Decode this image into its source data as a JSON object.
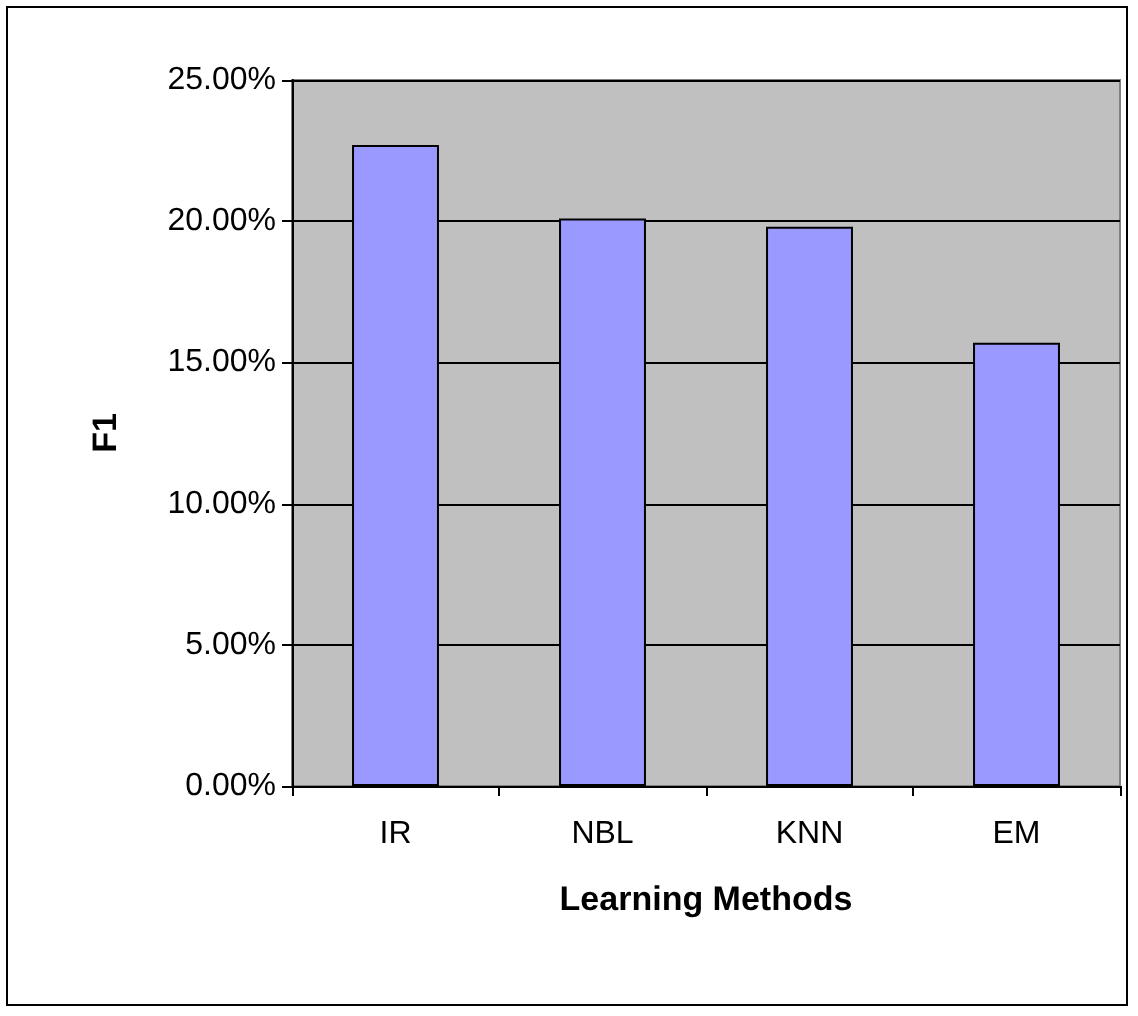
{
  "chart_data": {
    "type": "bar",
    "xlabel": "Learning Methods",
    "ylabel": "F1",
    "categories": [
      "IR",
      "NBL",
      "KNN",
      "EM"
    ],
    "values": [
      22.7,
      20.1,
      19.8,
      15.7
    ],
    "color": "#9999ff",
    "ylim": [
      0,
      25
    ],
    "yticks": [
      {
        "value": 0,
        "label": "0.00%"
      },
      {
        "value": 5,
        "label": "5.00%"
      },
      {
        "value": 10,
        "label": "10.00%"
      },
      {
        "value": 15,
        "label": "15.00%"
      },
      {
        "value": 20,
        "label": "20.00%"
      },
      {
        "value": 25,
        "label": "25.00%"
      }
    ],
    "grid": "y"
  }
}
